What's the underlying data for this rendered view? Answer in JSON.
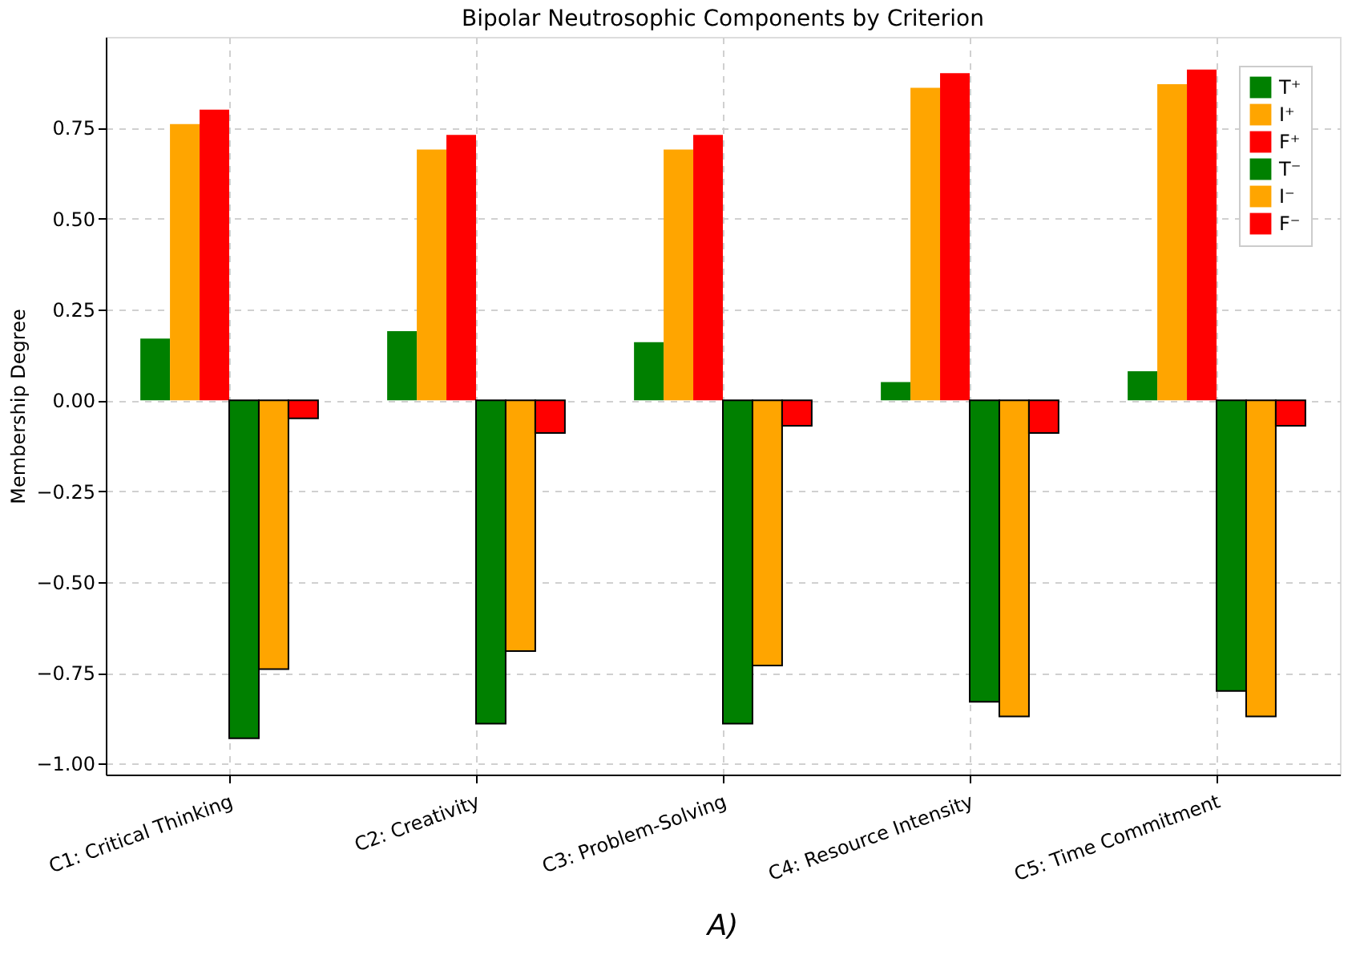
{
  "chart_data": {
    "type": "bar",
    "title": "Bipolar Neutrosophic Components by Criterion",
    "ylabel": "Membership Degree",
    "categories": [
      "C1: Critical Thinking",
      "C2: Creativity",
      "C3: Problem-Solving",
      "C4: Resource Intensity",
      "C5: Time Commitment"
    ],
    "series": [
      {
        "name": "T⁺",
        "color": "#008000",
        "values": [
          0.17,
          0.19,
          0.16,
          0.05,
          0.08
        ]
      },
      {
        "name": "I⁺",
        "color": "#ffa500",
        "values": [
          0.76,
          0.69,
          0.69,
          0.86,
          0.87
        ]
      },
      {
        "name": "F⁺",
        "color": "#ff0000",
        "values": [
          0.8,
          0.73,
          0.73,
          0.9,
          0.91
        ]
      },
      {
        "name": "T⁻",
        "color": "#008000",
        "values": [
          -0.93,
          -0.89,
          -0.89,
          -0.83,
          -0.8
        ]
      },
      {
        "name": "I⁻",
        "color": "#ffa500",
        "values": [
          -0.74,
          -0.69,
          -0.73,
          -0.87,
          -0.87
        ]
      },
      {
        "name": "F⁻",
        "color": "#ff0000",
        "values": [
          -0.05,
          -0.09,
          -0.07,
          -0.09,
          -0.07
        ]
      }
    ],
    "ylim": [
      -1.03,
      1.0
    ],
    "yticks": [
      {
        "value": -1,
        "label": "−1.00"
      },
      {
        "value": -0.75,
        "label": "−0.75"
      },
      {
        "value": -0.5,
        "label": "−0.50"
      },
      {
        "value": -0.25,
        "label": "−0.25"
      },
      {
        "value": 0,
        "label": "0.00"
      },
      0.25,
      {
        "value": 0.5,
        "label": "0.50"
      },
      0.75
    ],
    "grid": true,
    "legend": "top right",
    "annotations": [
      "A)"
    ]
  }
}
